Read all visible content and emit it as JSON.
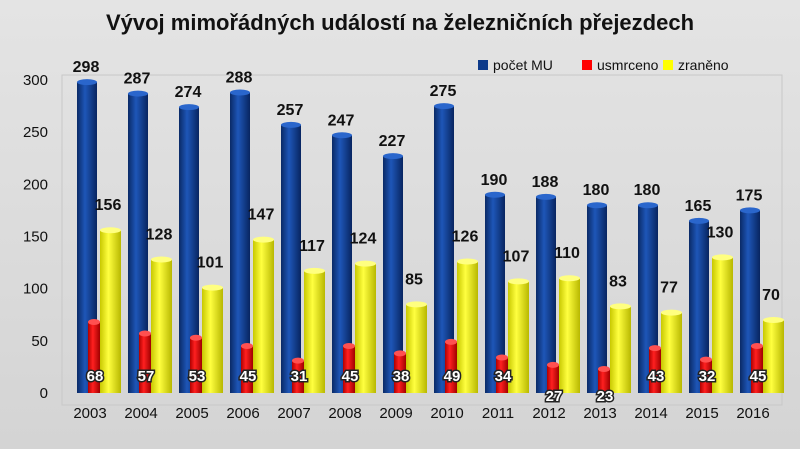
{
  "chart_data": {
    "type": "bar",
    "title": "Vývoj mimořádných událostí na železničních přejezdech",
    "categories": [
      "2003",
      "2004",
      "2005",
      "2006",
      "2007",
      "2008",
      "2009",
      "2010",
      "2011",
      "2012",
      "2013",
      "2014",
      "2015",
      "2016"
    ],
    "series": [
      {
        "name": "počet MU",
        "color": "#0d3a8a",
        "values": [
          298,
          287,
          274,
          288,
          257,
          247,
          227,
          275,
          190,
          188,
          180,
          180,
          165,
          175
        ]
      },
      {
        "name": "usmrceno",
        "color": "#ff0000",
        "values": [
          68,
          57,
          53,
          45,
          31,
          45,
          38,
          49,
          34,
          27,
          23,
          43,
          32,
          45
        ]
      },
      {
        "name": "zraněno",
        "color": "#ffff00",
        "values": [
          156,
          128,
          101,
          147,
          117,
          124,
          85,
          126,
          107,
          110,
          83,
          77,
          130,
          70
        ]
      }
    ],
    "yticks": [
      0,
      50,
      100,
      150,
      200,
      250,
      300
    ],
    "ylim": [
      0,
      300
    ],
    "legend": "top-right",
    "grid": false,
    "data_labels": true
  }
}
